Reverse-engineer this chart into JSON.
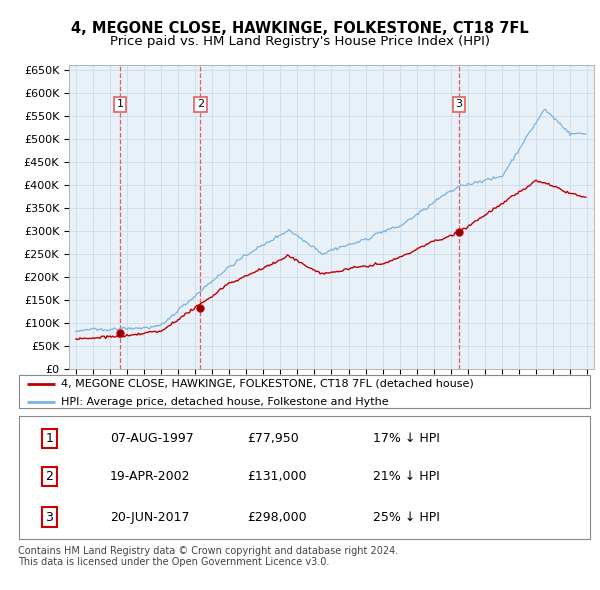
{
  "title": "4, MEGONE CLOSE, HAWKINGE, FOLKESTONE, CT18 7FL",
  "subtitle": "Price paid vs. HM Land Registry's House Price Index (HPI)",
  "ylim": [
    0,
    660000
  ],
  "yticks": [
    0,
    50000,
    100000,
    150000,
    200000,
    250000,
    300000,
    350000,
    400000,
    450000,
    500000,
    550000,
    600000,
    650000
  ],
  "ytick_labels": [
    "£0",
    "£50K",
    "£100K",
    "£150K",
    "£200K",
    "£250K",
    "£300K",
    "£350K",
    "£400K",
    "£450K",
    "£500K",
    "£550K",
    "£600K",
    "£650K"
  ],
  "xlim_start": 1994.6,
  "xlim_end": 2025.4,
  "sale_dates": [
    1997.6,
    2002.3,
    2017.47
  ],
  "sale_prices": [
    77950,
    131000,
    298000
  ],
  "sale_labels": [
    "1",
    "2",
    "3"
  ],
  "hpi_color": "#7ab3e0",
  "price_color": "#c00000",
  "vline_color": "#e06060",
  "chart_bg": "#e8f0f8",
  "legend_line1": "4, MEGONE CLOSE, HAWKINGE, FOLKESTONE, CT18 7FL (detached house)",
  "legend_line2": "HPI: Average price, detached house, Folkestone and Hythe",
  "table_data": [
    [
      "1",
      "07-AUG-1997",
      "£77,950",
      "17% ↓ HPI"
    ],
    [
      "2",
      "19-APR-2002",
      "£131,000",
      "21% ↓ HPI"
    ],
    [
      "3",
      "20-JUN-2017",
      "£298,000",
      "25% ↓ HPI"
    ]
  ],
  "footnote": "Contains HM Land Registry data © Crown copyright and database right 2024.\nThis data is licensed under the Open Government Licence v3.0.",
  "background_color": "#ffffff",
  "grid_color": "#c8d8e8",
  "title_fontsize": 10.5,
  "subtitle_fontsize": 9.5
}
